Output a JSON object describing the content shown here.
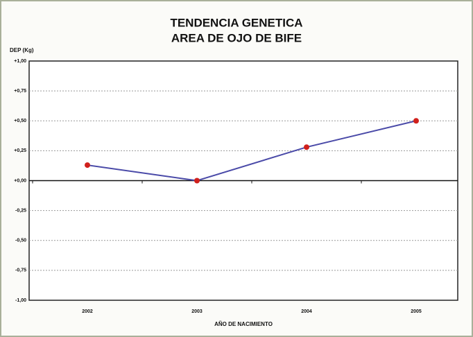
{
  "chart_data": {
    "type": "line",
    "title": [
      "TENDENCIA GENETICA",
      "AREA DE OJO DE BIFE"
    ],
    "y_label": "DEP (Kg)",
    "x_label": "AÑO DE NACIMIENTO",
    "categories": [
      "2002",
      "2003",
      "2004",
      "2005"
    ],
    "series": [
      {
        "name": "DEP",
        "color": "#4a4aa8",
        "marker_color": "#d0201c",
        "values": [
          0.13,
          0.0,
          0.28,
          0.5
        ]
      }
    ],
    "ylim": [
      -1,
      1
    ],
    "yticks": [
      {
        "value": 1,
        "label": "+1,00"
      },
      {
        "value": 0.75,
        "label": "+0,75"
      },
      {
        "value": 0.5,
        "label": "+0,50"
      },
      {
        "value": 0.25,
        "label": "+0,25"
      },
      {
        "value": 0,
        "label": "+0,00"
      },
      {
        "value": -0.25,
        "label": "-0,25"
      },
      {
        "value": -0.5,
        "label": "-0,50"
      },
      {
        "value": -0.75,
        "label": "-0,75"
      },
      {
        "value": -1,
        "label": "-1,00"
      }
    ],
    "grid": true
  }
}
